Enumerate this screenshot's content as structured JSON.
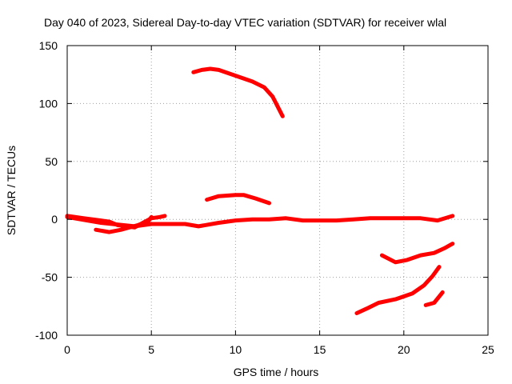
{
  "chart_data": {
    "type": "line",
    "title": "Day 040 of 2023, Sidereal Day-to-day VTEC variation (SDTVAR) for receiver wlal",
    "xlabel": "GPS time / hours",
    "ylabel": "SDTVAR / TECUs",
    "xlim": [
      0,
      25
    ],
    "ylim": [
      -100,
      150
    ],
    "xticks": [
      0,
      5,
      10,
      15,
      20,
      25
    ],
    "yticks": [
      -100,
      -50,
      0,
      50,
      100,
      150
    ],
    "grid": true,
    "line_color": "#ff0000",
    "series": [
      {
        "name": "arc-baseline",
        "points": [
          [
            0,
            2
          ],
          [
            2,
            -3
          ],
          [
            4,
            -6
          ],
          [
            5,
            -4
          ],
          [
            7,
            -4
          ],
          [
            7.8,
            -6
          ],
          [
            9,
            -3
          ],
          [
            10,
            -1
          ],
          [
            11,
            0
          ],
          [
            12,
            0
          ],
          [
            13,
            1
          ],
          [
            14,
            -1
          ],
          [
            15,
            -1
          ],
          [
            16,
            -1
          ],
          [
            17,
            0
          ],
          [
            18,
            1
          ],
          [
            19,
            1
          ],
          [
            20,
            1
          ],
          [
            21,
            1
          ],
          [
            22,
            -1
          ],
          [
            22.9,
            3
          ]
        ]
      },
      {
        "name": "arc-early-a",
        "points": [
          [
            0,
            3
          ],
          [
            1,
            1
          ],
          [
            2,
            -1
          ],
          [
            2.5,
            -2
          ],
          [
            3,
            -5
          ],
          [
            3.5,
            -6
          ],
          [
            4,
            -7
          ],
          [
            4.5,
            -3
          ],
          [
            5,
            1
          ],
          [
            5.5,
            2
          ],
          [
            5.8,
            3
          ]
        ]
      },
      {
        "name": "arc-early-b",
        "points": [
          [
            1.7,
            -9
          ],
          [
            2.5,
            -11
          ],
          [
            3.2,
            -9
          ],
          [
            4.2,
            -5
          ],
          [
            4.8,
            -2
          ],
          [
            5,
            2
          ]
        ]
      },
      {
        "name": "arc-high-a",
        "points": [
          [
            7.5,
            127
          ],
          [
            8,
            129
          ],
          [
            8.5,
            130
          ],
          [
            9,
            129
          ],
          [
            10,
            124
          ],
          [
            11,
            119
          ],
          [
            11.7,
            114
          ],
          [
            12.2,
            106
          ],
          [
            12.8,
            89
          ]
        ]
      },
      {
        "name": "arc-high-b",
        "points": [
          [
            8.3,
            17
          ],
          [
            9,
            20
          ],
          [
            10,
            21
          ],
          [
            10.5,
            21
          ],
          [
            11.2,
            18
          ],
          [
            12,
            14
          ]
        ]
      },
      {
        "name": "arc-low-a",
        "points": [
          [
            17.2,
            -81
          ],
          [
            17.8,
            -77
          ],
          [
            18.5,
            -72
          ],
          [
            19.5,
            -69
          ],
          [
            20.5,
            -64
          ],
          [
            21.2,
            -57
          ],
          [
            21.7,
            -49
          ],
          [
            22.1,
            -41
          ]
        ]
      },
      {
        "name": "arc-low-b",
        "points": [
          [
            18.7,
            -31
          ],
          [
            19.5,
            -37
          ],
          [
            20.2,
            -35
          ],
          [
            21,
            -31
          ],
          [
            21.8,
            -29
          ],
          [
            22.4,
            -25
          ],
          [
            22.9,
            -21
          ]
        ]
      },
      {
        "name": "arc-low-c",
        "points": [
          [
            21.3,
            -74
          ],
          [
            21.8,
            -72
          ],
          [
            22.3,
            -63
          ]
        ]
      }
    ]
  }
}
